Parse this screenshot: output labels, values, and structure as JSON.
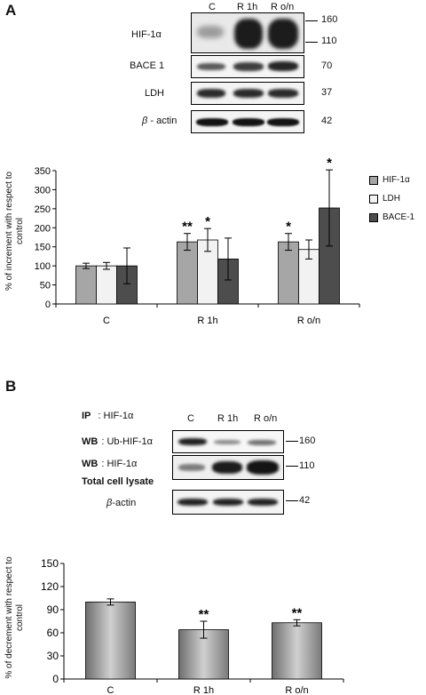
{
  "panelA": {
    "letter": "A",
    "lanes": [
      "C",
      "R 1h",
      "R o/n"
    ],
    "blots": [
      {
        "label": "HIF-1α",
        "mw": [
          "160",
          "110"
        ]
      },
      {
        "label": "BACE 1",
        "mw": [
          "70"
        ]
      },
      {
        "label": "LDH",
        "mw": [
          "37"
        ]
      },
      {
        "label_prefix": "β",
        "label_suffix": " - actin",
        "mw": [
          "42"
        ]
      }
    ]
  },
  "panelB": {
    "letter": "B",
    "lanes": [
      "C",
      "R 1h",
      "R o/n"
    ],
    "ip_label": "IP",
    "ip_target": ": HIF-1α",
    "wb1_label": "WB",
    "wb1_target": ": Ub-HIF-1α",
    "wb1_mw": "160",
    "wb2_label": "WB",
    "wb2_target": ": HIF-1α",
    "wb2_mw": "110",
    "lysate_label": "Total cell lysate",
    "actin_prefix": "β",
    "actin_suffix": "-actin",
    "actin_mw": "42"
  },
  "chart_data": [
    {
      "type": "bar",
      "categories": [
        "C",
        "R 1h",
        "R o/n"
      ],
      "ylabel": "% of increment with respect to control",
      "ylim": [
        0,
        350
      ],
      "yticks": [
        0,
        50,
        100,
        150,
        200,
        250,
        300,
        350
      ],
      "legend": "right",
      "series": [
        {
          "name": "HIF-1α",
          "color": "#a6a6a6",
          "values": [
            100,
            163,
            163
          ],
          "errors": [
            7,
            22,
            22
          ],
          "stars": [
            "",
            "**",
            "*"
          ]
        },
        {
          "name": "LDH",
          "color": "#f2f2f2",
          "values": [
            100,
            168,
            143
          ],
          "errors": [
            9,
            30,
            25
          ],
          "stars": [
            "",
            "*",
            ""
          ]
        },
        {
          "name": "BACE-1",
          "color": "#4d4d4d",
          "values": [
            100,
            118,
            252
          ],
          "errors": [
            47,
            55,
            100
          ],
          "stars": [
            "",
            "",
            "*"
          ]
        }
      ]
    },
    {
      "type": "bar",
      "categories": [
        "C",
        "R 1h",
        "R o/n"
      ],
      "ylabel": "% of decrement with respect to control",
      "ylim": [
        0,
        150
      ],
      "yticks": [
        0,
        30,
        60,
        90,
        120,
        150
      ],
      "series": [
        {
          "color": "#9a9a9a",
          "values": [
            100,
            64,
            73
          ],
          "errors": [
            4,
            11,
            4
          ],
          "stars": [
            "",
            "**",
            "**"
          ]
        }
      ]
    }
  ]
}
